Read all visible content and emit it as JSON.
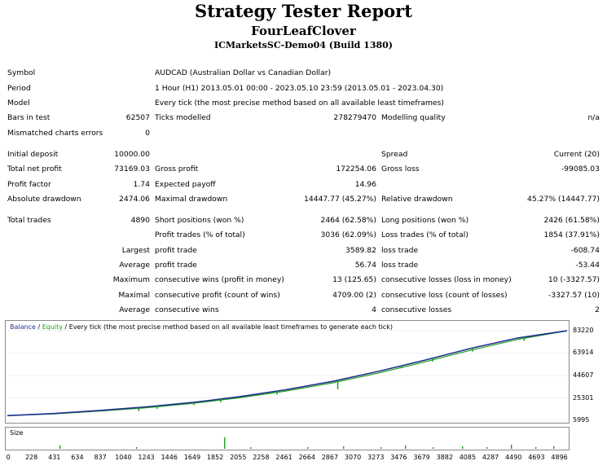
{
  "header": {
    "title": "Strategy Tester Report",
    "expert": "FourLeafClover",
    "server": "ICMarketsSC-Demo04 (Build 1380)"
  },
  "info": {
    "symbol_label": "Symbol",
    "symbol_value": "AUDCAD (Australian Dollar vs Canadian Dollar)",
    "period_label": "Period",
    "period_value": "1 Hour (H1) 2013.05.01 00:00 - 2023.05.10 23:59 (2013.05.01 - 2023.04.30)",
    "model_label": "Model",
    "model_value": "Every tick (the most precise method based on all available least timeframes)",
    "bars_label": "Bars in test",
    "bars_value": "62507",
    "ticks_label": "Ticks modelled",
    "ticks_value": "278279470",
    "quality_label": "Modelling quality",
    "quality_value": "n/a",
    "mismatch_label": "Mismatched charts errors",
    "mismatch_value": "0"
  },
  "stats": {
    "deposit_label": "Initial deposit",
    "deposit_value": "10000.00",
    "spread_label": "Spread",
    "spread_value": "Current (20)",
    "net_label": "Total net profit",
    "net_value": "73169.03",
    "gross_profit_label": "Gross profit",
    "gross_profit_value": "172254.06",
    "gross_loss_label": "Gross loss",
    "gross_loss_value": "-99085.03",
    "pf_label": "Profit factor",
    "pf_value": "1.74",
    "ep_label": "Expected payoff",
    "ep_value": "14.96",
    "abs_dd_label": "Absolute drawdown",
    "abs_dd_value": "2474.06",
    "max_dd_label": "Maximal drawdown",
    "max_dd_value": "14447.77 (45.27%)",
    "rel_dd_label": "Relative drawdown",
    "rel_dd_value": "45.27% (14447.77)"
  },
  "trades": {
    "total_label": "Total trades",
    "total_value": "4890",
    "short_label": "Short positions (won %)",
    "short_value": "2464 (62.58%)",
    "long_label": "Long positions (won %)",
    "long_value": "2426 (61.58%)",
    "profit_trades_label": "Profit trades (% of total)",
    "profit_trades_value": "3036 (62.09%)",
    "loss_trades_label": "Loss trades (% of total)",
    "loss_trades_value": "1854 (37.91%)",
    "largest_label": "Largest",
    "largest_profit_label": "profit trade",
    "largest_profit_value": "3589.82",
    "largest_loss_label": "loss trade",
    "largest_loss_value": "-608.74",
    "average_label": "Average",
    "average_profit_label": "profit trade",
    "average_profit_value": "56.74",
    "average_loss_label": "loss trade",
    "average_loss_value": "-53.44",
    "maximum_label": "Maximum",
    "max_cons_wins_label": "consecutive wins (profit in money)",
    "max_cons_wins_value": "13 (125.65)",
    "max_cons_losses_label": "consecutive losses (loss in money)",
    "max_cons_losses_value": "10 (-3327.57)",
    "maximal_label": "Maximal",
    "maximal_profit_label": "consecutive profit (count of wins)",
    "maximal_profit_value": "4709.00 (2)",
    "maximal_loss_label": "consecutive loss (count of losses)",
    "maximal_loss_value": "-3327.57 (10)",
    "average2_label": "Average",
    "avg_cons_wins_label": "consecutive wins",
    "avg_cons_wins_value": "4",
    "avg_cons_losses_label": "consecutive losses",
    "avg_cons_losses_value": "2"
  },
  "chart": {
    "legend_balance": "Balance",
    "legend_sep": " / ",
    "legend_equity": "Equity",
    "legend_rest": " / Every tick (the most precise method based on all available least timeframes to generate each tick)",
    "size_label": "Size",
    "balance_color": "#1f2f8f",
    "equity_color": "#1e9e1e"
  },
  "chart_data": {
    "type": "line",
    "series": [
      {
        "name": "Balance",
        "values": [
          10000,
          11800,
          14500,
          17600,
          21400,
          26300,
          32300,
          39500,
          48200,
          57900,
          68100,
          77000,
          83169
        ]
      },
      {
        "name": "Equity",
        "values": [
          10000,
          11500,
          13900,
          16800,
          20700,
          25400,
          31200,
          38200,
          46800,
          56400,
          66600,
          75700,
          83169
        ]
      }
    ],
    "x": [
      0,
      406,
      812,
      1218,
      1624,
      2030,
      2436,
      2842,
      3248,
      3654,
      4060,
      4466,
      4896
    ],
    "ylim": [
      5995,
      83220
    ],
    "y_ticks": [
      "83220",
      "63914",
      "44607",
      "25301",
      "5995"
    ],
    "x_ticks": [
      "0",
      "228",
      "431",
      "634",
      "837",
      "1040",
      "1243",
      "1446",
      "1649",
      "1852",
      "2055",
      "2258",
      "2461",
      "2664",
      "2867",
      "3070",
      "3273",
      "3476",
      "3679",
      "3882",
      "4085",
      "4287",
      "4490",
      "4693",
      "4896"
    ],
    "drawdown_spikes": [
      {
        "x": 1150,
        "depth": 3200
      },
      {
        "x": 1310,
        "depth": 2600
      },
      {
        "x": 1632,
        "depth": 2400
      },
      {
        "x": 1866,
        "depth": 2800
      },
      {
        "x": 2360,
        "depth": 3000
      },
      {
        "x": 2890,
        "depth": 7800
      },
      {
        "x": 3450,
        "depth": 2200
      },
      {
        "x": 3720,
        "depth": 2900
      },
      {
        "x": 4070,
        "depth": 3100
      },
      {
        "x": 4520,
        "depth": 3300
      }
    ]
  }
}
